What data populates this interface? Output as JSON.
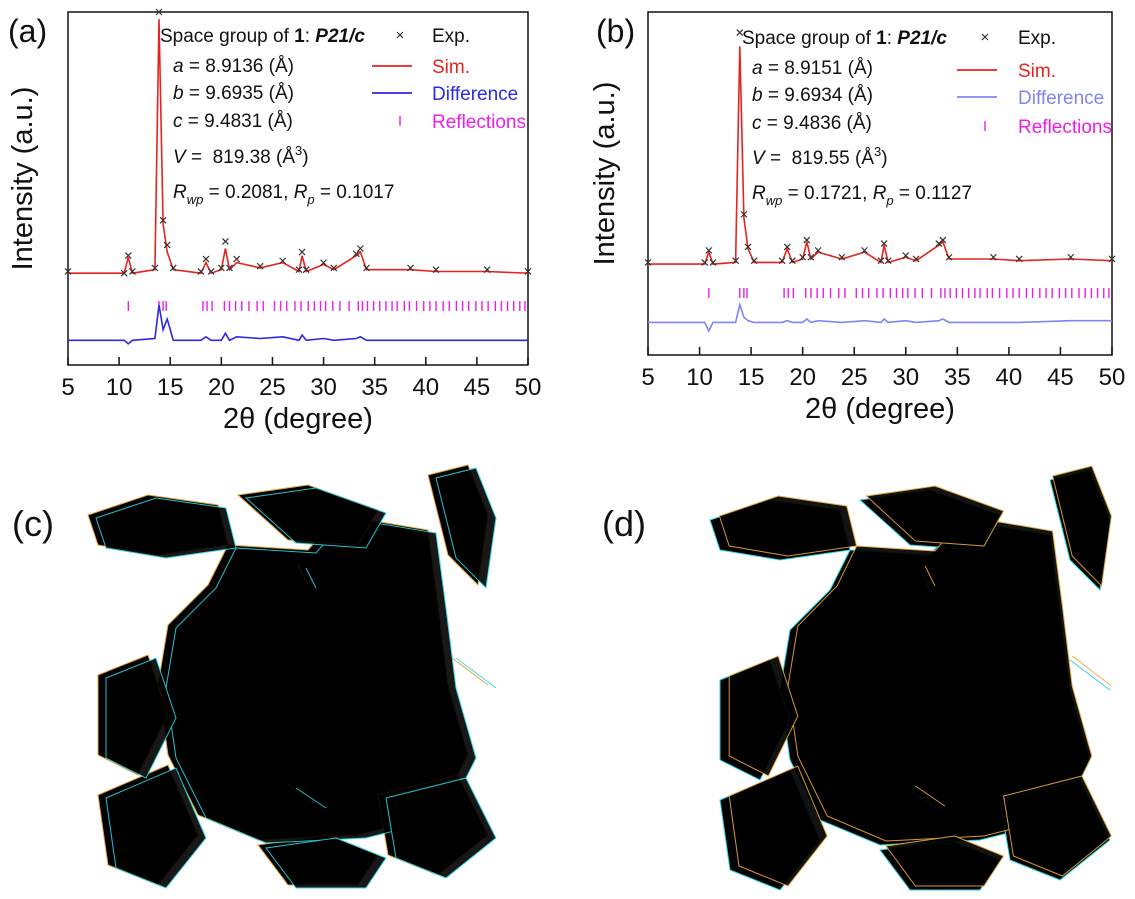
{
  "chart_data": [
    {
      "type": "line",
      "panel_label": "(a)",
      "x_label": "2θ (degree)",
      "y_label": "Intensity (a.u.)",
      "xlim": [
        5,
        50
      ],
      "xticks": [
        5,
        10,
        15,
        20,
        25,
        30,
        35,
        40,
        45,
        50
      ],
      "ylim": [
        0,
        100
      ],
      "x": [
        5,
        10.5,
        10.9,
        11.3,
        13.5,
        13.9,
        14.3,
        14.7,
        15.3,
        18.0,
        18.5,
        19.0,
        20.0,
        20.4,
        20.8,
        21.5,
        23.8,
        26.0,
        27.6,
        27.9,
        28.3,
        30.0,
        31.0,
        33.2,
        33.6,
        34.2,
        38.5,
        41,
        46,
        50
      ],
      "series": [
        {
          "name": "Exp.",
          "type": "scatter",
          "color": "#333333",
          "values": [
            26.5,
            26,
            31,
            26.5,
            27.5,
            100,
            41,
            34,
            27.5,
            26.5,
            30,
            26.5,
            27.5,
            35,
            27.5,
            30,
            28,
            29.5,
            27,
            32,
            27,
            29,
            27.5,
            31.5,
            33,
            27.5,
            27.5,
            27,
            27,
            26.5
          ]
        },
        {
          "name": "Sim.",
          "type": "line",
          "color": "#e8231f",
          "values": [
            26,
            26,
            30.5,
            26,
            27,
            98,
            40,
            32,
            27,
            26,
            29,
            26,
            27,
            33,
            27,
            29,
            27.5,
            29,
            26.5,
            31,
            26.5,
            28.5,
            27,
            31,
            32,
            27,
            27,
            26.5,
            26.5,
            26
          ]
        },
        {
          "name": "Difference",
          "type": "line",
          "color": "#2a2ae0",
          "values": [
            7,
            7,
            6,
            7,
            7.5,
            17,
            10,
            13,
            7,
            7,
            8,
            7,
            7,
            9,
            7,
            8,
            7.5,
            8,
            7,
            8.5,
            7,
            7.5,
            7,
            7.5,
            8,
            7,
            7,
            7,
            7,
            7
          ]
        },
        {
          "name": "Reflections",
          "type": "ticks",
          "color": "#ee1ee8",
          "positions": [
            10.9,
            13.9,
            14.3,
            14.6,
            18.2,
            18.6,
            19.1,
            20.3,
            20.8,
            21.4,
            22.0,
            22.7,
            23.5,
            24.1,
            25.2,
            25.8,
            26.4,
            27.2,
            27.8,
            28.5,
            29.1,
            29.7,
            30.2,
            30.9,
            31.6,
            32.5,
            33.4,
            33.8,
            34.3,
            34.9,
            35.5,
            36.1,
            36.7,
            37.2,
            37.9,
            38.4,
            39.1,
            39.8,
            40.4,
            41.0,
            41.7,
            42.3,
            43.0,
            43.6,
            44.2,
            44.9,
            45.5,
            46.1,
            46.8,
            47.4,
            48.0,
            48.6,
            49.2,
            49.7
          ]
        }
      ],
      "annotations": [
        [
          {
            "text": "Space group of ",
            "style": "normal"
          },
          {
            "text": "1",
            "style": "bold"
          },
          {
            "text": ": ",
            "style": "normal"
          },
          {
            "text": "P21/c",
            "style": "bold-italic"
          }
        ],
        [
          {
            "text": "a",
            "style": "italic"
          },
          {
            "text": " = 8.9136 (Å)",
            "style": "normal"
          }
        ],
        [
          {
            "text": "b",
            "style": "italic"
          },
          {
            "text": " = 9.6935 (Å)",
            "style": "normal"
          }
        ],
        [
          {
            "text": "c",
            "style": "italic"
          },
          {
            "text": " = 9.4831 (Å)",
            "style": "normal"
          }
        ],
        [
          {
            "text": "V",
            "style": "italic"
          },
          {
            "text": " =  819.38 (Å",
            "style": "normal"
          },
          {
            "text": "3",
            "style": "sup"
          },
          {
            "text": ")",
            "style": "normal"
          }
        ],
        [
          {
            "text": "R",
            "style": "italic"
          },
          {
            "text": "wp",
            "style": "sub-italic"
          },
          {
            "text": " = 0.2081, ",
            "style": "normal"
          },
          {
            "text": "R",
            "style": "italic"
          },
          {
            "text": "p",
            "style": "sub-italic"
          },
          {
            "text": " = 0.1017",
            "style": "normal"
          }
        ]
      ]
    },
    {
      "type": "line",
      "panel_label": "(b)",
      "x_label": "2θ (degree)",
      "y_label": "Intensity (a.u.)",
      "xlim": [
        5,
        50
      ],
      "xticks": [
        5,
        10,
        15,
        20,
        25,
        30,
        35,
        40,
        45,
        50
      ],
      "ylim": [
        0,
        100
      ],
      "x": [
        5,
        10.5,
        10.9,
        11.3,
        13.5,
        13.9,
        14.3,
        14.7,
        15.3,
        18.0,
        18.5,
        19.0,
        20.0,
        20.4,
        20.8,
        21.5,
        23.8,
        26.0,
        27.6,
        27.9,
        28.3,
        30.0,
        31.0,
        33.2,
        33.6,
        34.2,
        38.5,
        41,
        46,
        50
      ],
      "series": [
        {
          "name": "Exp.",
          "type": "scatter",
          "color": "#333333",
          "values": [
            27,
            27,
            30.5,
            27,
            27.5,
            94,
            41,
            31.5,
            27.5,
            27.5,
            31.5,
            27.5,
            28.5,
            33.5,
            28.5,
            30.5,
            28.5,
            30.5,
            27.5,
            32.5,
            27.5,
            29,
            28,
            32.5,
            33.5,
            28.5,
            28.5,
            28,
            28.5,
            28
          ]
        },
        {
          "name": "Sim.",
          "type": "line",
          "color": "#e8231f",
          "values": [
            26.5,
            26.5,
            30,
            26.5,
            27,
            90,
            40,
            31,
            27,
            27,
            31,
            27,
            28,
            33,
            28,
            30,
            28,
            30,
            27,
            32,
            27,
            28.5,
            27.5,
            32,
            33,
            28,
            28,
            27.5,
            28,
            27.5
          ]
        },
        {
          "name": "Difference",
          "type": "line",
          "color": "#7f86f2",
          "values": [
            9.5,
            9.5,
            7,
            9.5,
            9.5,
            14.7,
            11,
            10,
            9.5,
            9.5,
            10,
            9.5,
            9.5,
            10.5,
            9.5,
            10,
            9.5,
            10,
            9.5,
            10.5,
            9.5,
            10,
            9.5,
            10,
            10.5,
            9.5,
            9.5,
            9.5,
            10,
            10
          ]
        },
        {
          "name": "Reflections",
          "type": "ticks",
          "color": "#ee1ee8",
          "positions": [
            10.9,
            13.9,
            14.3,
            14.6,
            18.2,
            18.6,
            19.1,
            20.3,
            20.8,
            21.4,
            22.0,
            22.7,
            23.5,
            24.1,
            25.2,
            25.8,
            26.4,
            27.2,
            27.8,
            28.5,
            29.1,
            29.7,
            30.2,
            30.9,
            31.6,
            32.5,
            33.4,
            33.8,
            34.3,
            34.9,
            35.5,
            36.1,
            36.7,
            37.2,
            37.9,
            38.4,
            39.1,
            39.8,
            40.4,
            41.0,
            41.7,
            42.3,
            43.0,
            43.6,
            44.2,
            44.9,
            45.5,
            46.1,
            46.8,
            47.4,
            48.0,
            48.6,
            49.2,
            49.7
          ]
        }
      ],
      "annotations": [
        [
          {
            "text": "Space group of ",
            "style": "normal"
          },
          {
            "text": "1",
            "style": "bold"
          },
          {
            "text": ": ",
            "style": "normal"
          },
          {
            "text": "P21/c",
            "style": "bold-italic"
          }
        ],
        [
          {
            "text": "a",
            "style": "italic"
          },
          {
            "text": " = 8.9151 (Å)",
            "style": "normal"
          }
        ],
        [
          {
            "text": "b",
            "style": "italic"
          },
          {
            "text": " = 9.6934 (Å)",
            "style": "normal"
          }
        ],
        [
          {
            "text": "c",
            "style": "italic"
          },
          {
            "text": " = 9.4836 (Å)",
            "style": "normal"
          }
        ],
        [
          {
            "text": "V",
            "style": "italic"
          },
          {
            "text": " =  819.55 (Å",
            "style": "normal"
          },
          {
            "text": "3",
            "style": "sup"
          },
          {
            "text": ")",
            "style": "normal"
          }
        ],
        [
          {
            "text": "R",
            "style": "italic"
          },
          {
            "text": "wp",
            "style": "sub-italic"
          },
          {
            "text": " = 0.1721, ",
            "style": "normal"
          },
          {
            "text": "R",
            "style": "italic"
          },
          {
            "text": "p",
            "style": "sub-italic"
          },
          {
            "text": " = 0.1127",
            "style": "normal"
          }
        ]
      ]
    }
  ],
  "structure_panels": [
    {
      "label": "(c)"
    },
    {
      "label": "(d)"
    }
  ]
}
